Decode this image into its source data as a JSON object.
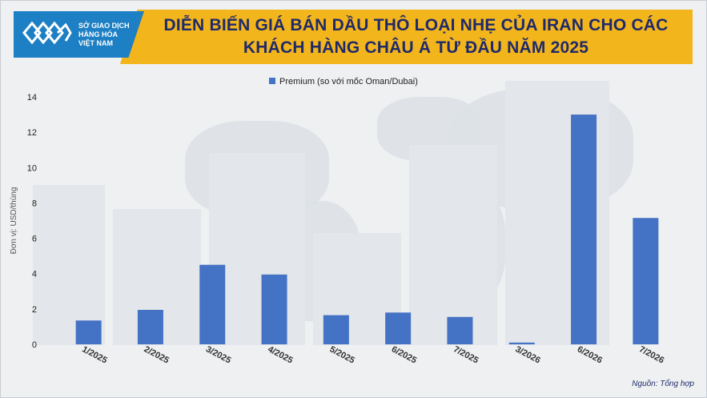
{
  "header": {
    "title_line1": "DIỄN BIẾN GIÁ BÁN DẦU THÔ LOẠI NHẸ CỦA IRAN CHO CÁC",
    "title_line2": "KHÁCH HÀNG CHÂU Á TỪ ĐẦU NĂM 2025"
  },
  "logo": {
    "line1": "SỞ GIAO DỊCH",
    "line2": "HÀNG HÓA",
    "line3": "VIỆT NAM",
    "color": "#1d7fc4"
  },
  "source": "Nguồn: Tổng hợp",
  "chart_data": {
    "type": "bar",
    "categories": [
      "1/2025",
      "2/2025",
      "3/2025",
      "4/2025",
      "5/2025",
      "6/2025",
      "7/2025",
      "3/2026",
      "6/2026",
      "7/2026"
    ],
    "series": [
      {
        "name": "Premium (so với mốc Oman/Dubai)",
        "values": [
          1.35,
          1.95,
          4.5,
          3.95,
          1.65,
          1.8,
          1.55,
          0.1,
          13.0,
          7.15
        ],
        "color": "#4472c4"
      }
    ],
    "ylabel": "Đơn vị: USD/thùng",
    "ylim": [
      0,
      14
    ],
    "yticks": [
      0,
      2,
      4,
      6,
      8,
      10,
      12,
      14
    ],
    "legend_position": "top-center",
    "grid": false
  }
}
